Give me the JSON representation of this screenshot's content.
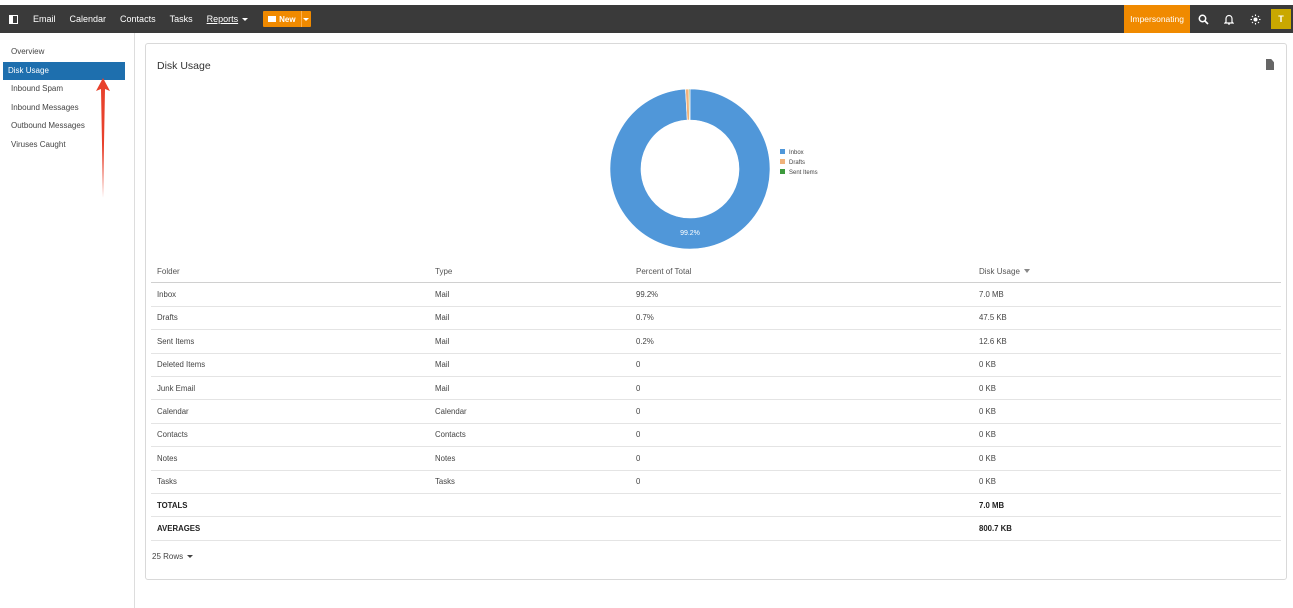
{
  "topbar": {
    "nav": [
      "Email",
      "Calendar",
      "Contacts",
      "Tasks",
      "Reports"
    ],
    "new_label": "New",
    "impersonating_label": "Impersonating",
    "avatar_initial": "T"
  },
  "sidebar": {
    "items": [
      {
        "label": "Overview",
        "active": false
      },
      {
        "label": "Disk Usage",
        "active": true
      },
      {
        "label": "Inbound Spam",
        "active": false
      },
      {
        "label": "Inbound Messages",
        "active": false
      },
      {
        "label": "Outbound Messages",
        "active": false
      },
      {
        "label": "Viruses Caught",
        "active": false
      }
    ]
  },
  "card": {
    "title": "Disk Usage"
  },
  "chart_data": {
    "type": "pie",
    "categories": [
      "Inbox",
      "Drafts",
      "Sent Items"
    ],
    "values": [
      99.2,
      0.7,
      0.2
    ],
    "colors": [
      "#5097d9",
      "#f0b27a",
      "#3c9a3c"
    ],
    "data_labels": [
      "99.2%"
    ],
    "legend": "right"
  },
  "table": {
    "headers": [
      "Folder",
      "Type",
      "Percent of Total",
      "Disk Usage"
    ],
    "rows": [
      [
        "Inbox",
        "Mail",
        "99.2%",
        "7.0 MB"
      ],
      [
        "Drafts",
        "Mail",
        "0.7%",
        "47.5 KB"
      ],
      [
        "Sent Items",
        "Mail",
        "0.2%",
        "12.6 KB"
      ],
      [
        "Deleted Items",
        "Mail",
        "0",
        "0 KB"
      ],
      [
        "Junk Email",
        "Mail",
        "0",
        "0 KB"
      ],
      [
        "Calendar",
        "Calendar",
        "0",
        "0 KB"
      ],
      [
        "Contacts",
        "Contacts",
        "0",
        "0 KB"
      ],
      [
        "Notes",
        "Notes",
        "0",
        "0 KB"
      ],
      [
        "Tasks",
        "Tasks",
        "0",
        "0 KB"
      ]
    ],
    "totals_label": "TOTALS",
    "totals_value": "7.0 MB",
    "averages_label": "AVERAGES",
    "averages_value": "800.7 KB",
    "rows_selector": "25 Rows"
  },
  "colors": {
    "topbar": "#3a3a3a",
    "accent_orange": "#f08a00",
    "active_blue": "#1e6fae",
    "annotation_arrow": "#e8412c"
  }
}
